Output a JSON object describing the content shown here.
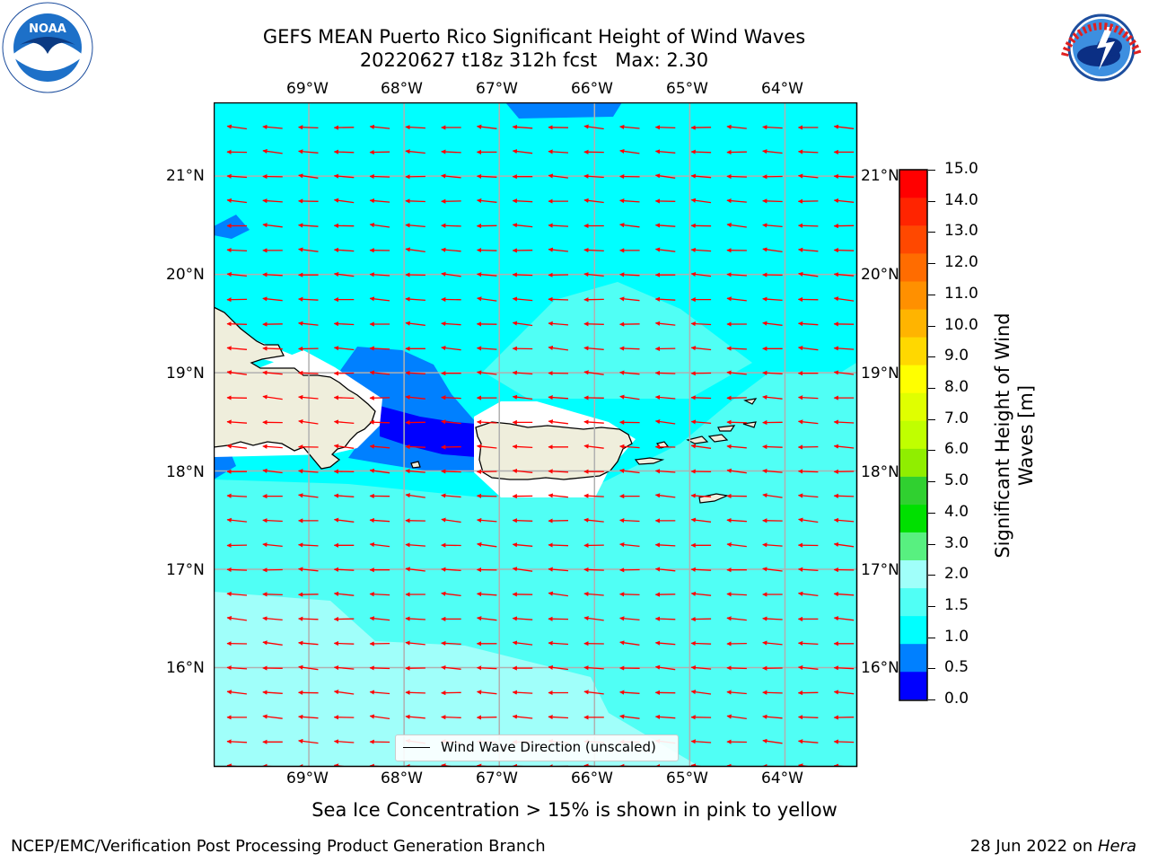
{
  "title": {
    "line1": "GEFS MEAN Puerto Rico Significant Height of Wind Waves",
    "line2": "20220627 t18z 312h fcst   Max: 2.30"
  },
  "map": {
    "lon_labels": [
      "69°W",
      "68°W",
      "67°W",
      "66°W",
      "65°W",
      "64°W"
    ],
    "lat_labels": [
      "21°N",
      "20°N",
      "19°N",
      "18°N",
      "17°N",
      "16°N"
    ],
    "lon_range": [
      -70.0,
      -63.25
    ],
    "lat_range": [
      15.0,
      21.75
    ],
    "wind_wave_direction": "from east-northeast",
    "legend_label": "Wind Wave Direction (unscaled)"
  },
  "colorbar": {
    "label": "Significant Height of Wind Waves [m]",
    "ticks": [
      "15.0",
      "14.0",
      "13.0",
      "12.0",
      "11.0",
      "10.0",
      "9.0",
      "8.0",
      "7.0",
      "6.0",
      "5.0",
      "4.0",
      "3.0",
      "2.0",
      "1.5",
      "1.0",
      "0.5",
      "0.0"
    ],
    "colors": [
      "#ff0000",
      "#ff2400",
      "#ff4800",
      "#ff6c00",
      "#ff9000",
      "#ffb400",
      "#ffd800",
      "#ffff00",
      "#e0ff00",
      "#c0ff00",
      "#90ee00",
      "#30d030",
      "#00e000",
      "#58f080",
      "#a0fffa",
      "#50fff5",
      "#00ffff",
      "#0080ff",
      "#0000ff"
    ],
    "colors_bottom_to_top": [
      "#0000ff",
      "#0080ff",
      "#00ffff",
      "#50fff5",
      "#a0fffa",
      "#58f080",
      "#00e000",
      "#30d030",
      "#90ee00",
      "#c0ff00",
      "#e0ff00",
      "#ffff00",
      "#ffd800",
      "#ffb400",
      "#ff9000",
      "#ff6c00",
      "#ff4800",
      "#ff2400",
      "#ff0000"
    ]
  },
  "caption": "Sea Ice Concentration > 15% is shown in pink to yellow",
  "footer": {
    "left": "NCEP/EMC/Verification Post Processing Product Generation Branch",
    "right_prefix": "28 Jun 2022 on ",
    "right_host": "Hera"
  },
  "logos": {
    "left": "NOAA",
    "left_ring": "NATIONAL OCEANIC AND ATMOSPHERIC ADMINISTRATION · U.S. DEPARTMENT OF COMMERCE",
    "right_ring": "NATIONAL WEATHER SERVICE"
  }
}
